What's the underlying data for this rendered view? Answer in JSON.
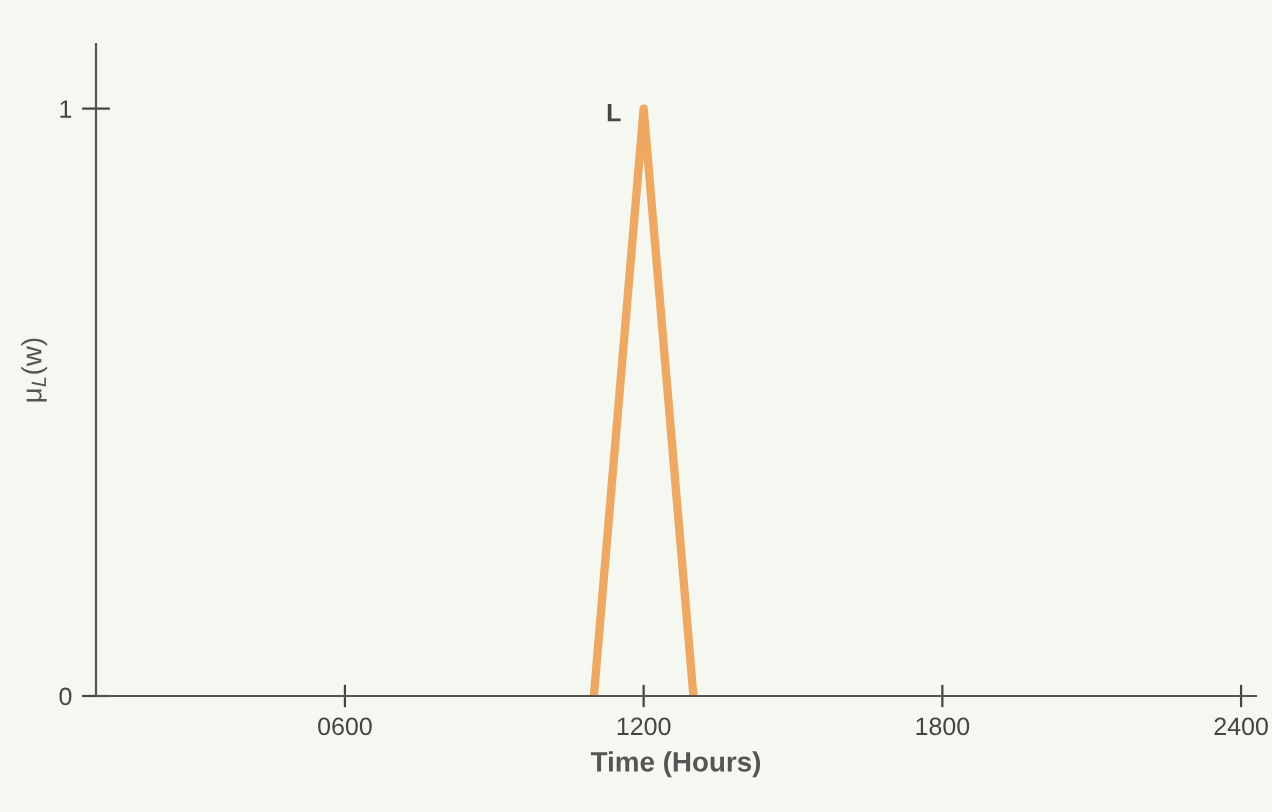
{
  "chart_data": {
    "type": "line",
    "xlabel": "Time (Hours)",
    "ylabel": "μ$_{L}$(w)",
    "x": [
      1100,
      1200,
      1300
    ],
    "series": [
      {
        "color": "#f0a860",
        "values": [
          0,
          1,
          0
        ]
      }
    ],
    "xlim": [
      100,
      2430
    ],
    "ylim": [
      0,
      1.11
    ],
    "xticks": [
      {
        "value": 600,
        "label": "0600"
      },
      1200,
      1800,
      2400
    ],
    "yticks": [
      0,
      1
    ],
    "annotations": [
      {
        "text": "L",
        "x": 1200,
        "y": 1
      }
    ],
    "grid": false,
    "legend": false,
    "marker": "none",
    "line_style": "solid"
  }
}
